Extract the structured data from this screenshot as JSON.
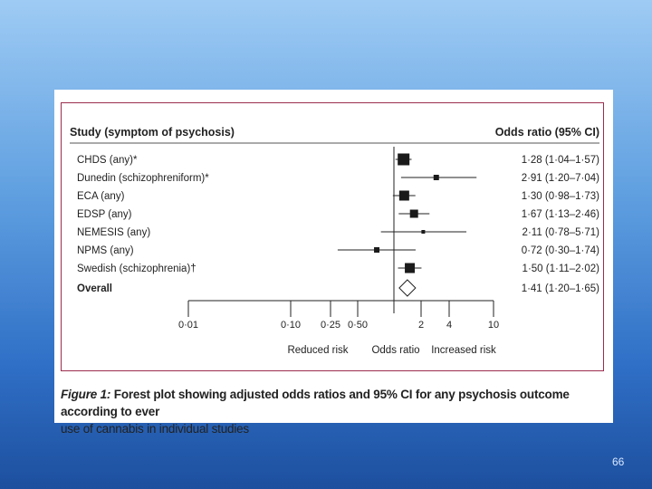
{
  "slide": {
    "page_number": "66"
  },
  "colors": {
    "frame": "#9b2d4e",
    "marker": "#1a1a1a",
    "ink": "#222222"
  },
  "chart_data": {
    "type": "forest",
    "header_left": "Study (symptom of psychosis)",
    "header_right": "Odds ratio (95% CI)",
    "studies": [
      {
        "label": "CHDS (any)*",
        "or": 1.28,
        "lo": 1.04,
        "hi": 1.57,
        "ci_text": "1·28 (1·04–1·57)",
        "weight": 13
      },
      {
        "label": "Dunedin (schizophreniform)*",
        "or": 2.91,
        "lo": 1.2,
        "hi": 7.04,
        "ci_text": "2·91 (1·20–7·04)",
        "weight": 6
      },
      {
        "label": "ECA (any)",
        "or": 1.3,
        "lo": 0.98,
        "hi": 1.73,
        "ci_text": "1·30 (0·98–1·73)",
        "weight": 11
      },
      {
        "label": "EDSP (any)",
        "or": 1.67,
        "lo": 1.13,
        "hi": 2.46,
        "ci_text": "1·67 (1·13–2·46)",
        "weight": 9
      },
      {
        "label": "NEMESIS (any)",
        "or": 2.11,
        "lo": 0.78,
        "hi": 5.71,
        "ci_text": "2·11 (0·78–5·71)",
        "weight": 4
      },
      {
        "label": "NPMS (any)",
        "or": 0.72,
        "lo": 0.3,
        "hi": 1.74,
        "ci_text": "0·72 (0·30–1·74)",
        "weight": 6
      },
      {
        "label": "Swedish (schizophrenia)†",
        "or": 1.5,
        "lo": 1.11,
        "hi": 2.02,
        "ci_text": "1·50 (1·11–2·02)",
        "weight": 11
      }
    ],
    "overall": {
      "label": "Overall",
      "or": 1.41,
      "lo": 1.2,
      "hi": 1.65,
      "ci_text": "1·41 (1·20–1·65)"
    },
    "x_axis": {
      "scale": "log",
      "range": [
        0.01,
        10
      ],
      "ticks": [
        {
          "value": 0.01,
          "label": "0·01"
        },
        {
          "value": 0.1,
          "label": "0·10"
        },
        {
          "value": 0.25,
          "label": "0·25"
        },
        {
          "value": 0.5,
          "label": "0·50"
        },
        {
          "value": 2,
          "label": "2"
        },
        {
          "value": 4,
          "label": "4"
        },
        {
          "value": 10,
          "label": "10"
        }
      ],
      "reference_value": 1,
      "label_left": "Reduced risk",
      "label_center": "Odds ratio",
      "label_right": "Increased risk"
    }
  },
  "caption": {
    "label": "Figure 1:",
    "title": " Forest plot showing adjusted odds ratios and 95% CI for any psychosis outcome according to ever",
    "text": "use of cannabis in individual studies"
  }
}
